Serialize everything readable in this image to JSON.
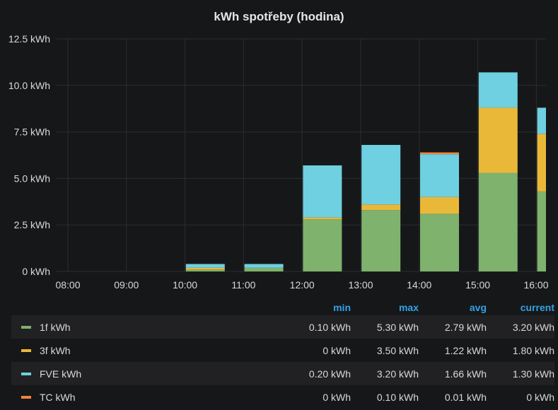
{
  "chart_data": {
    "type": "bar",
    "stacked": true,
    "title": "kWh spotřeby (hodina)",
    "categories": [
      "08:00",
      "09:00",
      "10:00",
      "11:00",
      "12:00",
      "13:00",
      "14:00",
      "15:00",
      "16:00"
    ],
    "y_tick_labels": [
      "0 kWh",
      "2.5 kWh",
      "5.0 kWh",
      "7.5 kWh",
      "10.0 kWh",
      "12.5 kWh"
    ],
    "ylim": [
      0,
      12.5
    ],
    "grid": true,
    "series": [
      {
        "name": "1f kWh",
        "color": "#7eb26d",
        "values": [
          0,
          0.1,
          0.2,
          2.8,
          3.3,
          3.1,
          5.3,
          4.3,
          3.2
        ]
      },
      {
        "name": "3f kWh",
        "color": "#eab839",
        "values": [
          0,
          0.1,
          0,
          0.1,
          0.3,
          0.9,
          3.5,
          3.1,
          1.8
        ]
      },
      {
        "name": "FVE kWh",
        "color": "#6ed0e0",
        "values": [
          0,
          0.2,
          0.2,
          2.8,
          3.2,
          2.3,
          1.9,
          1.4,
          1.3
        ]
      },
      {
        "name": "TC kWh",
        "color": "#ef843c",
        "values": [
          0,
          0,
          0,
          0,
          0,
          0.1,
          0,
          0,
          0
        ]
      }
    ]
  },
  "legend": {
    "headers": [
      "min",
      "max",
      "avg",
      "current"
    ],
    "rows": [
      {
        "name": "1f kWh",
        "color": "#7eb26d",
        "min": "0.10 kWh",
        "max": "5.30 kWh",
        "avg": "2.79 kWh",
        "current": "3.20 kWh"
      },
      {
        "name": "3f kWh",
        "color": "#eab839",
        "min": "0 kWh",
        "max": "3.50 kWh",
        "avg": "1.22 kWh",
        "current": "1.80 kWh"
      },
      {
        "name": "FVE kWh",
        "color": "#6ed0e0",
        "min": "0.20 kWh",
        "max": "3.20 kWh",
        "avg": "1.66 kWh",
        "current": "1.30 kWh"
      },
      {
        "name": "TC kWh",
        "color": "#ef843c",
        "min": "0 kWh",
        "max": "0.10 kWh",
        "avg": "0.01 kWh",
        "current": "0 kWh"
      }
    ]
  }
}
